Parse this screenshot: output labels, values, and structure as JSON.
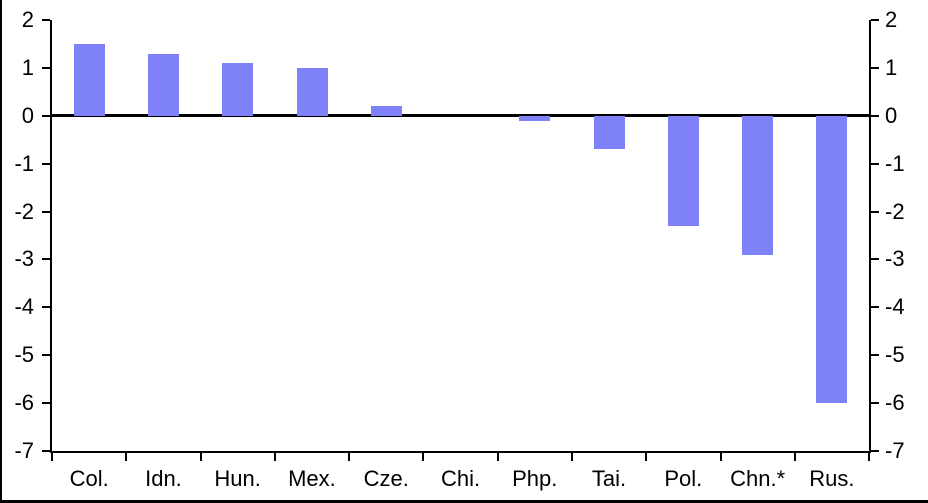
{
  "chart_data": {
    "type": "bar",
    "title": "",
    "xlabel": "",
    "ylabel": "",
    "categories": [
      "Col.",
      "Idn.",
      "Hun.",
      "Mex.",
      "Cze.",
      "Chi.",
      "Php.",
      "Tai.",
      "Pol.",
      "Chn.*",
      "Rus."
    ],
    "values": [
      1.5,
      1.3,
      1.1,
      1.0,
      0.2,
      0.0,
      -0.1,
      -0.7,
      -2.3,
      -2.9,
      -6.0
    ],
    "ylim": [
      -7,
      2
    ],
    "yticks": [
      2,
      1,
      0,
      -1,
      -2,
      -3,
      -4,
      -5,
      -6,
      -7
    ],
    "dual_y_axis": true,
    "grid": false,
    "legend": false,
    "bar_color": "#7e81f8",
    "axis_color": "#000000",
    "background_color": "#ffffff"
  }
}
